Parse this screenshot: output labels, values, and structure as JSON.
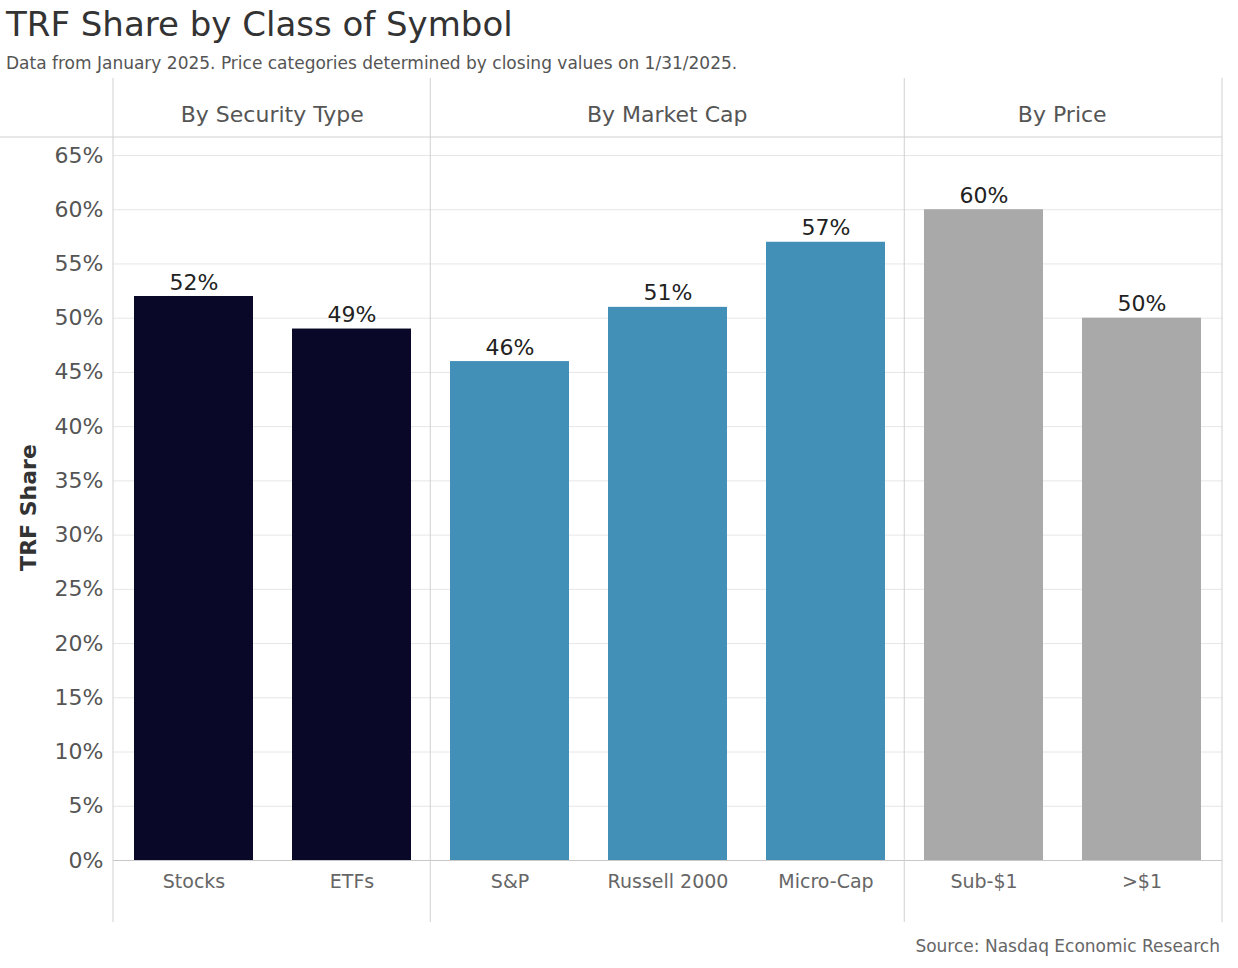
{
  "chart_data": {
    "type": "bar",
    "title": "TRF Share by Class of Symbol",
    "subtitle": "Data from January 2025. Price categories determined by closing values on 1/31/2025.",
    "source": "Source: Nasdaq Economic Research",
    "ylabel": "TRF Share",
    "categories": [
      "Stocks",
      "ETFs",
      "S&P",
      "Russell 2000",
      "Micro-Cap",
      "Sub-$1",
      ">$1"
    ],
    "groups": [
      "By Security Type",
      "By Security Type",
      "By Market Cap",
      "By Market Cap",
      "By Market Cap",
      "By Price",
      "By Price"
    ],
    "values": [
      52,
      49,
      46,
      51,
      57,
      60,
      50
    ],
    "value_labels": [
      "52%",
      "49%",
      "46%",
      "51%",
      "57%",
      "60%",
      "50%"
    ],
    "colors": [
      "#0a0828",
      "#0a0828",
      "#428fb8",
      "#428fb8",
      "#428fb8",
      "#a9a9a9",
      "#a9a9a9"
    ],
    "ylim": [
      0,
      65
    ],
    "yticks": [
      {
        "value": 0,
        "label": "0%"
      },
      {
        "value": 5,
        "label": "5%"
      },
      {
        "value": 10,
        "label": "10%"
      },
      {
        "value": 15,
        "label": "15%"
      },
      {
        "value": 20,
        "label": "20%"
      },
      {
        "value": 25,
        "label": "25%"
      },
      {
        "value": 30,
        "label": "30%"
      },
      {
        "value": 35,
        "label": "35%"
      },
      {
        "value": 40,
        "label": "40%"
      },
      {
        "value": 45,
        "label": "45%"
      },
      {
        "value": 50,
        "label": "50%"
      },
      {
        "value": 55,
        "label": "55%"
      },
      {
        "value": 60,
        "label": "60%"
      },
      {
        "value": 65,
        "label": "65%"
      }
    ],
    "grid": true,
    "data_labels": true
  }
}
